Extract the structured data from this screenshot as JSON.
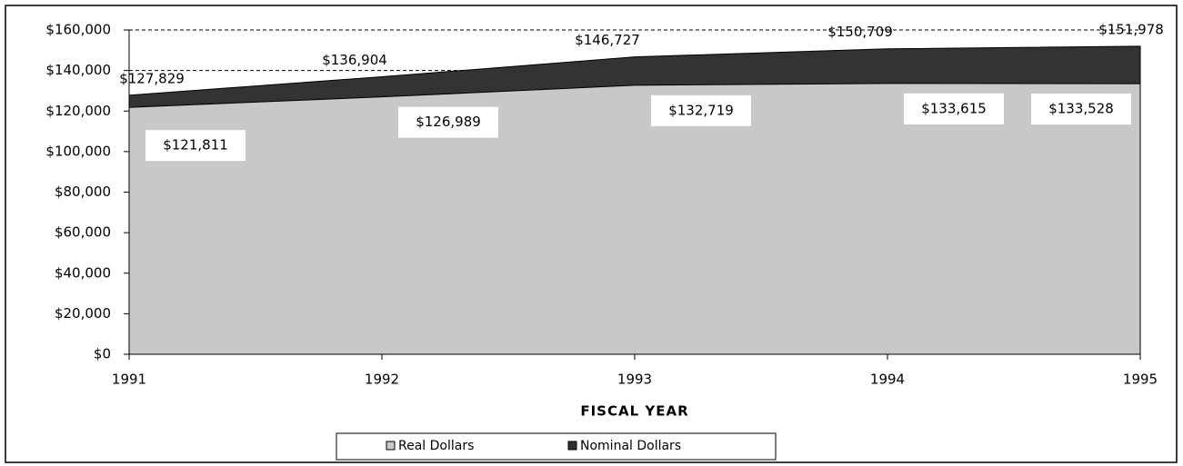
{
  "chart_data": {
    "type": "area",
    "xlabel": "FISCAL YEAR",
    "categories": [
      "1991",
      "1992",
      "1993",
      "1994",
      "1995"
    ],
    "series": [
      {
        "name": "Nominal Dollars",
        "color": "#333333",
        "values": [
          127829,
          136904,
          146727,
          150709,
          151978
        ],
        "value_labels": [
          "$127,829",
          "$136,904",
          "$146,727",
          "$150,709",
          "$151,978"
        ]
      },
      {
        "name": "Real Dollars",
        "color": "#c8c8c8",
        "values": [
          121811,
          126989,
          132719,
          133615,
          133528
        ],
        "value_labels": [
          "$121,811",
          "$126,989",
          "$132,719",
          "$133,615",
          "$133,528"
        ]
      }
    ],
    "ylim": [
      0,
      160000
    ],
    "yticks": [
      {
        "value": 0,
        "label": "$0"
      },
      {
        "value": 20000,
        "label": "$20,000"
      },
      {
        "value": 40000,
        "label": "$40,000"
      },
      {
        "value": 60000,
        "label": "$60,000"
      },
      {
        "value": 80000,
        "label": "$80,000"
      },
      {
        "value": 100000,
        "label": "$100,000"
      },
      {
        "value": 120000,
        "label": "$120,000"
      },
      {
        "value": 140000,
        "label": "$140,000"
      },
      {
        "value": 160000,
        "label": "$160,000"
      }
    ],
    "grid": true
  }
}
